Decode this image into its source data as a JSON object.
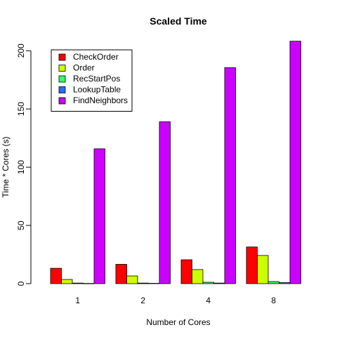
{
  "chart_data": {
    "type": "bar",
    "title": "Scaled Time",
    "xlabel": "Number of Cores",
    "ylabel": "Time * Cores (s)",
    "categories": [
      "1",
      "2",
      "4",
      "8"
    ],
    "ylim": [
      0,
      208
    ],
    "yticks": [
      0,
      50,
      100,
      150,
      200
    ],
    "grid": false,
    "legend_position": "top-left",
    "series": [
      {
        "name": "CheckOrder",
        "color": "#ff0000",
        "values": [
          13.2,
          16.6,
          20.5,
          31.5
        ]
      },
      {
        "name": "Order",
        "color": "#ccff00",
        "values": [
          3.6,
          6.6,
          12.1,
          24.2
        ]
      },
      {
        "name": "RecStartPos",
        "color": "#33ff66",
        "values": [
          0.5,
          0.5,
          1.2,
          1.8
        ]
      },
      {
        "name": "LookupTable",
        "color": "#3366ff",
        "values": [
          0.2,
          0.3,
          0.5,
          0.9
        ]
      },
      {
        "name": "FindNeighbors",
        "color": "#cc00ff",
        "values": [
          115.8,
          139.0,
          185.5,
          208.2
        ]
      }
    ]
  }
}
